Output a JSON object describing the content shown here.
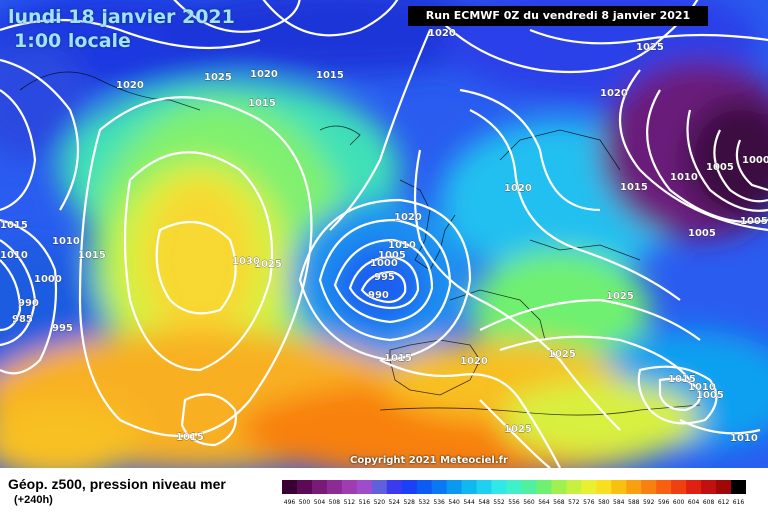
{
  "header": {
    "date": "lundi 18 janvier 2021",
    "time": "1:00 locale",
    "run": "Run ECMWF 0Z du vendredi 8 janvier 2021"
  },
  "isobar_labels": [
    "1020",
    "1025",
    "1020",
    "1015",
    "1025",
    "1020",
    "1015",
    "1020",
    "1015",
    "1000",
    "1005",
    "1010",
    "1020",
    "1005",
    "1015",
    "1005",
    "1010",
    "1010",
    "1000",
    "995",
    "990",
    "1025",
    "1030",
    "1020",
    "1010",
    "1005",
    "1015",
    "1000",
    "990",
    "985",
    "995",
    "1015",
    "1020",
    "1025",
    "1015",
    "1010",
    "1005",
    "1010",
    "1015",
    "1025"
  ],
  "legend": {
    "title": "Géop. z500, pression niveau mer",
    "subtitle": "(+240h)",
    "scale_values": [
      "496",
      "500",
      "504",
      "508",
      "512",
      "516",
      "520",
      "524",
      "528",
      "532",
      "536",
      "540",
      "544",
      "548",
      "552",
      "556",
      "560",
      "564",
      "568",
      "572",
      "576",
      "580",
      "584",
      "588",
      "592",
      "596",
      "600",
      "604",
      "608",
      "612",
      "616"
    ],
    "scale_colors": [
      "#3a0033",
      "#5c0a55",
      "#7a1a78",
      "#8e2a96",
      "#a03cb2",
      "#9f4ccc",
      "#6060dc",
      "#3a3af0",
      "#1a40f8",
      "#0a5cf4",
      "#0a78f4",
      "#0a98f0",
      "#10b8f0",
      "#20d0f0",
      "#30e8e8",
      "#40f0c8",
      "#50f0a0",
      "#70f070",
      "#a0f050",
      "#c8f040",
      "#e8f030",
      "#f8e020",
      "#f8c010",
      "#f8a010",
      "#f88010",
      "#f86010",
      "#f04010",
      "#e02010",
      "#c01010",
      "#a00808",
      "#000000"
    ]
  },
  "copyright": "Copyright 2021 Meteociel.fr"
}
